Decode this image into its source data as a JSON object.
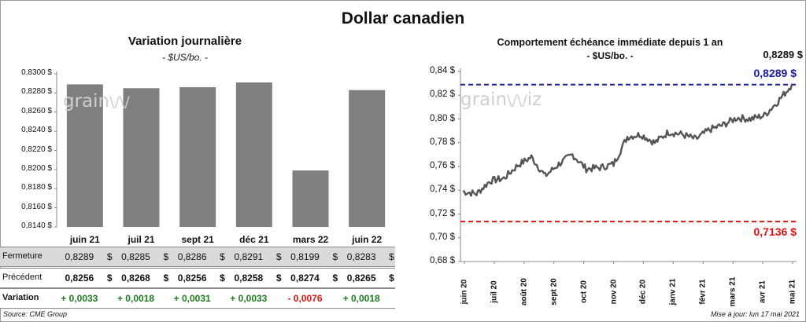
{
  "title": "Dollar canadien",
  "chart_data": [
    {
      "type": "bar",
      "title": "Variation  journalière",
      "subtitle": "- $US/bo. -",
      "categories": [
        "juin 21",
        "juil 21",
        "sept 21",
        "déc 21",
        "mars 22",
        "juin 22"
      ],
      "values": [
        0.8289,
        0.8285,
        0.8286,
        0.8291,
        0.8199,
        0.8283
      ],
      "ylim": [
        0.814,
        0.83
      ],
      "yticks": [
        "0,8140 $",
        "0,8160 $",
        "0,8180 $",
        "0,8200 $",
        "0,8220 $",
        "0,8240 $",
        "0,8260 $",
        "0,8280 $",
        "0,8300 $"
      ],
      "color": "#7f7f7f",
      "table": {
        "rows": [
          {
            "label": "Fermeture",
            "values": [
              "0,8289",
              "0,8285",
              "0,8286",
              "0,8291",
              "0,8199",
              "0,8283"
            ],
            "unit": "$"
          },
          {
            "label": "Précédent",
            "values": [
              "0,8256",
              "0,8268",
              "0,8256",
              "0,8258",
              "0,8274",
              "0,8265"
            ],
            "unit": "$"
          },
          {
            "label": "Variation",
            "values": [
              "+ 0,0033",
              "+ 0,0018",
              "+ 0,0031",
              "+ 0,0033",
              "- 0,0076",
              "+ 0,0018"
            ]
          }
        ],
        "positive_color": "#1e7b1e",
        "negative_color": "#e01010"
      }
    },
    {
      "type": "line",
      "title": "Comportement échéance immédiate depuis 1 an",
      "subtitle": "- $US/bo. -",
      "x_labels": [
        "juin 20",
        "juil 20",
        "août 20",
        "sept 20",
        "oct 20",
        "nov 20",
        "déc 20",
        "janv 21",
        "févr 21",
        "mars 21",
        "avr 21",
        "mai 21"
      ],
      "ylim": [
        0.68,
        0.84
      ],
      "yticks": [
        "0,68 $",
        "0,70 $",
        "0,72 $",
        "0,74 $",
        "0,76 $",
        "0,78 $",
        "0,80 $",
        "0,82 $",
        "0,84 $"
      ],
      "series_monthly": [
        0.739,
        0.737,
        0.748,
        0.75,
        0.761,
        0.768,
        0.752,
        0.762,
        0.77,
        0.758,
        0.759,
        0.762,
        0.785,
        0.787,
        0.78,
        0.789,
        0.787,
        0.783,
        0.791,
        0.795,
        0.801,
        0.8,
        0.803,
        0.815,
        0.8289
      ],
      "last_value": "0,8289 $",
      "high": {
        "value": 0.8289,
        "label": "0,8289 $",
        "color": "#1a1aa0"
      },
      "low": {
        "value": 0.7136,
        "label": "0,7136 $",
        "color": "#e01010"
      },
      "line_color": "#555555"
    }
  ],
  "watermark": "grainwiz",
  "footer": {
    "source": "Source: CME Group",
    "updated": "Mise à jour: lun 17 mai 2021"
  }
}
